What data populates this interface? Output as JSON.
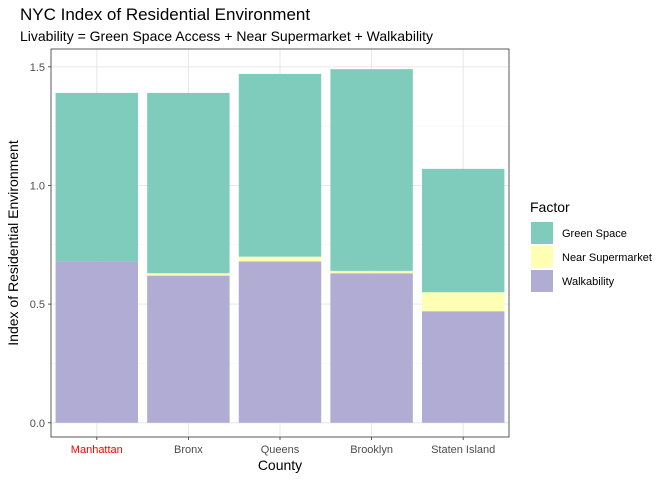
{
  "chart_data": {
    "type": "bar",
    "stacked": true,
    "title": "NYC Index of Residential Environment",
    "subtitle": "Livability = Green Space Access + Near Supermarket + Walkability",
    "xlabel": "County",
    "ylabel": "Index of Residential Environment",
    "categories": [
      "Manhattan",
      "Bronx",
      "Queens",
      "Brooklyn",
      "Staten Island"
    ],
    "highlight_category": "Manhattan",
    "highlight_color": "#ff0000",
    "ylim": [
      -0.06,
      1.575
    ],
    "yticks": [
      0.0,
      0.5,
      1.0,
      1.5
    ],
    "ytick_labels": [
      "0.0",
      "0.5",
      "1.0",
      "1.5"
    ],
    "grid": true,
    "legend_position": "right",
    "legend_title": "Factor",
    "legend_order": [
      "Green Space",
      "Near Supermarket",
      "Walkability"
    ],
    "stack_order": [
      "Walkability",
      "Near Supermarket",
      "Green Space"
    ],
    "series": [
      {
        "name": "Green Space",
        "color": "#7fccbc",
        "values": [
          0.71,
          0.76,
          0.77,
          0.85,
          0.52
        ]
      },
      {
        "name": "Near Supermarket",
        "color": "#ffffb3",
        "values": [
          0.0,
          0.01,
          0.02,
          0.01,
          0.08
        ]
      },
      {
        "name": "Walkability",
        "color": "#b1acd3",
        "values": [
          0.68,
          0.62,
          0.68,
          0.63,
          0.47
        ]
      }
    ]
  }
}
